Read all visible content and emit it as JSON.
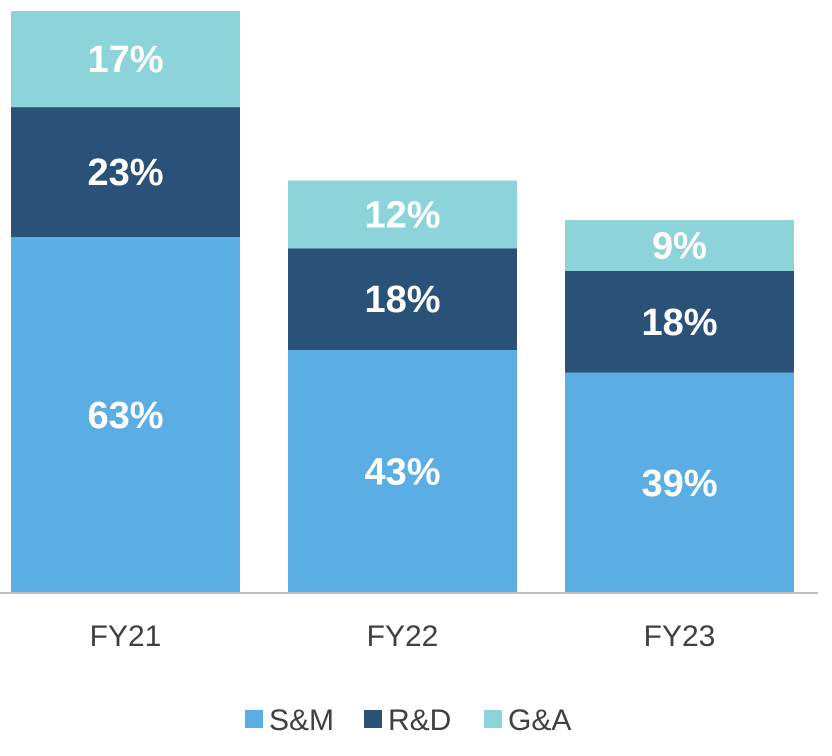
{
  "chart_data": {
    "type": "bar",
    "stacked": true,
    "categories": [
      "FY21",
      "FY22",
      "FY23"
    ],
    "series": [
      {
        "name": "S&M",
        "values": [
          63,
          43,
          39
        ],
        "labels": [
          "63%",
          "43%",
          "39%"
        ],
        "color": "#5aaee3"
      },
      {
        "name": "R&D",
        "values": [
          23,
          18,
          18
        ],
        "labels": [
          "23%",
          "18%",
          "18%"
        ],
        "color": "#2a5279"
      },
      {
        "name": "G&A",
        "values": [
          17,
          12,
          9
        ],
        "labels": [
          "17%",
          "12%",
          "9%"
        ],
        "color": "#8dd3da"
      }
    ],
    "unit": "%",
    "title": "",
    "xlabel": "",
    "ylabel": "",
    "ylim": [
      0,
      103
    ],
    "grid": false,
    "legend_position": "bottom",
    "axis_color": "#bfbfbf",
    "category_label_color": "#404040",
    "data_label_color": "#ffffff"
  }
}
